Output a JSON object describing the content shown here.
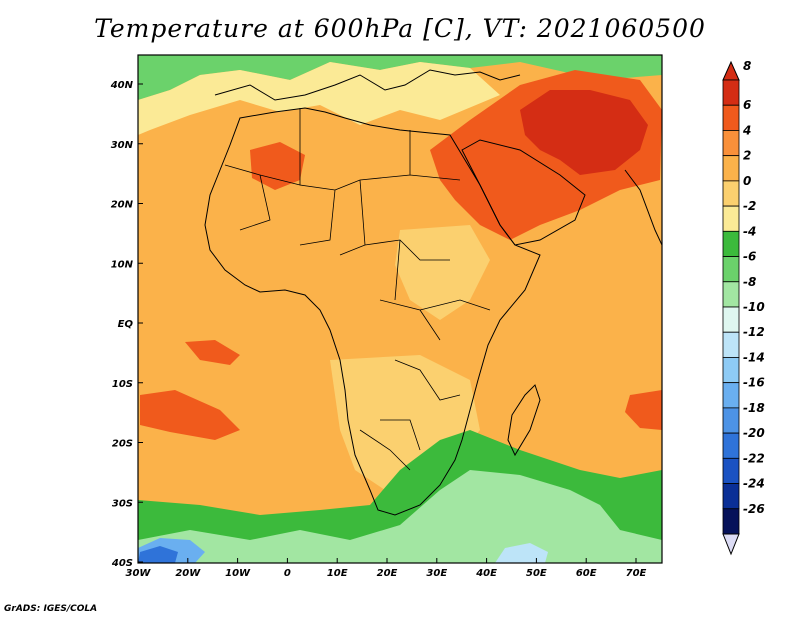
{
  "title": "Temperature at 600hPa [C], VT: 2021060500",
  "credit": "GrADS: IGES/COLA",
  "axes": {
    "lat_labels": [
      "40N",
      "30N",
      "20N",
      "10N",
      "EQ",
      "10S",
      "20S",
      "30S",
      "40S"
    ],
    "lon_labels": [
      "30W",
      "20W",
      "10W",
      "0",
      "10E",
      "20E",
      "30E",
      "40E",
      "50E",
      "60E",
      "70E"
    ]
  },
  "colorbar": {
    "levels": [
      "8",
      "6",
      "4",
      "2",
      "0",
      "-2",
      "-4",
      "-6",
      "-8",
      "-10",
      "-12",
      "-14",
      "-16",
      "-18",
      "-20",
      "-22",
      "-24",
      "-26"
    ],
    "colors": [
      "#d42d14",
      "#f05a1c",
      "#f9903a",
      "#fbb24a",
      "#fbd06f",
      "#fbea96",
      "#3cba3c",
      "#6bd26b",
      "#a2e6a2",
      "#dff7f0",
      "#bde4f8",
      "#8ecbf5",
      "#6aaff0",
      "#4d93e6",
      "#2f73d9",
      "#1a52c2",
      "#0a2f96",
      "#06125a"
    ],
    "arrow_top_color": "#d42d14",
    "arrow_bottom_color": "#dcdcf5"
  },
  "palette": {
    "ocean_warm": "#fbb24a",
    "land_main": "#fbb24a",
    "hot": "#f05a1c",
    "very_hot": "#d42d14",
    "mild": "#fbd06f",
    "cool": "#fbea96",
    "green_dark": "#3cba3c",
    "green_mid": "#6bd26b",
    "green_light": "#a2e6a2",
    "blue_light": "#bde4f8",
    "blue_mid": "#6aaff0",
    "blue_dark": "#2f73d9"
  }
}
